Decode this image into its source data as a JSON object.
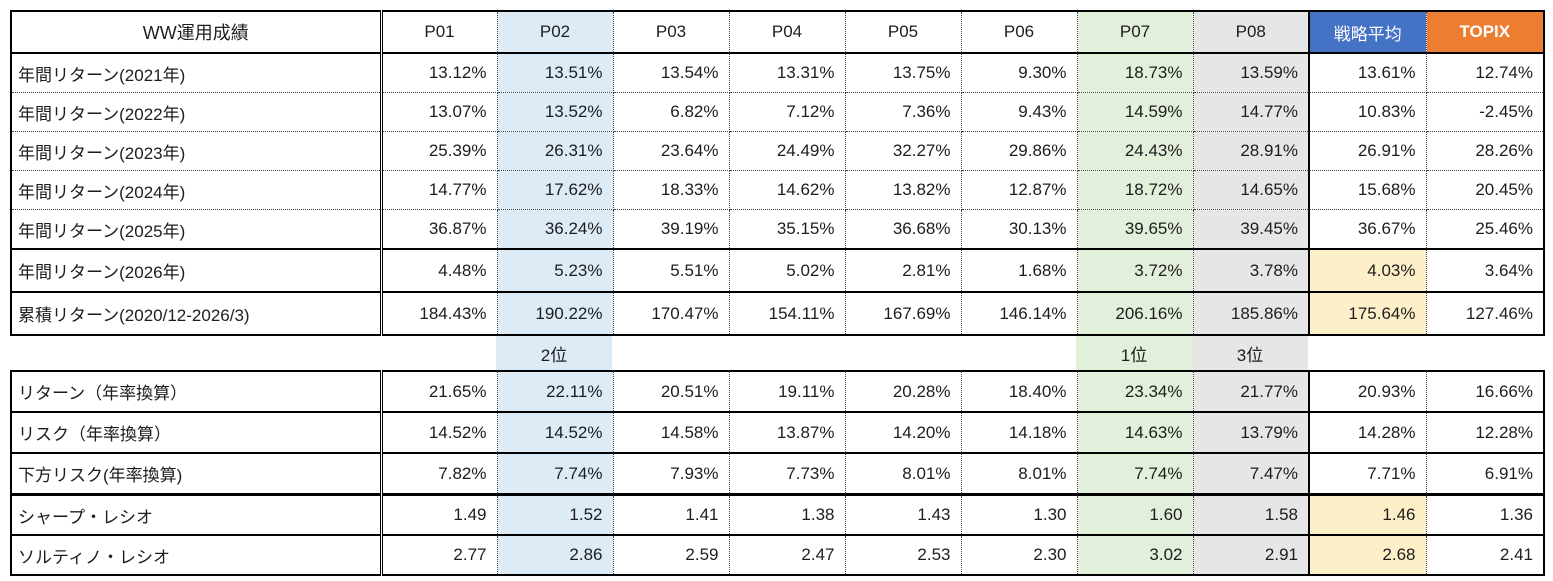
{
  "chart_data": {
    "type": "table",
    "title": "WW運用成績",
    "columns": [
      "WW運用成績",
      "P01",
      "P02",
      "P03",
      "P04",
      "P05",
      "P06",
      "P07",
      "P08",
      "戦略平均",
      "TOPIX"
    ],
    "rows": [
      [
        "年間リターン(2021年)",
        "13.12%",
        "13.51%",
        "13.54%",
        "13.31%",
        "13.75%",
        "9.30%",
        "18.73%",
        "13.59%",
        "13.61%",
        "12.74%"
      ],
      [
        "年間リターン(2022年)",
        "13.07%",
        "13.52%",
        "6.82%",
        "7.12%",
        "7.36%",
        "9.43%",
        "14.59%",
        "14.77%",
        "10.83%",
        "-2.45%"
      ],
      [
        "年間リターン(2023年)",
        "25.39%",
        "26.31%",
        "23.64%",
        "24.49%",
        "32.27%",
        "29.86%",
        "24.43%",
        "28.91%",
        "26.91%",
        "28.26%"
      ],
      [
        "年間リターン(2024年)",
        "14.77%",
        "17.62%",
        "18.33%",
        "14.62%",
        "13.82%",
        "12.87%",
        "18.72%",
        "14.65%",
        "15.68%",
        "20.45%"
      ],
      [
        "年間リターン(2025年)",
        "36.87%",
        "36.24%",
        "39.19%",
        "35.15%",
        "36.68%",
        "30.13%",
        "39.65%",
        "39.45%",
        "36.67%",
        "25.46%"
      ],
      [
        "年間リターン(2026年)",
        "4.48%",
        "5.23%",
        "5.51%",
        "5.02%",
        "2.81%",
        "1.68%",
        "3.72%",
        "3.78%",
        "4.03%",
        "3.64%"
      ],
      [
        "累積リターン(2020/12-2026/3)",
        "184.43%",
        "190.22%",
        "170.47%",
        "154.11%",
        "167.69%",
        "146.14%",
        "206.16%",
        "185.86%",
        "175.64%",
        "127.46%"
      ],
      [
        "リターン（年率換算）",
        "21.65%",
        "22.11%",
        "20.51%",
        "19.11%",
        "20.28%",
        "18.40%",
        "23.34%",
        "21.77%",
        "20.93%",
        "16.66%"
      ],
      [
        "リスク（年率換算）",
        "14.52%",
        "14.52%",
        "14.58%",
        "13.87%",
        "14.20%",
        "14.18%",
        "14.63%",
        "13.79%",
        "14.28%",
        "12.28%"
      ],
      [
        "下方リスク(年率換算)",
        "7.82%",
        "7.74%",
        "7.93%",
        "7.73%",
        "8.01%",
        "8.01%",
        "7.74%",
        "7.47%",
        "7.71%",
        "6.91%"
      ],
      [
        "シャープ・レシオ",
        "1.49",
        "1.52",
        "1.41",
        "1.38",
        "1.43",
        "1.30",
        "1.60",
        "1.58",
        "1.46",
        "1.36"
      ],
      [
        "ソルティノ・レシオ",
        "2.77",
        "2.86",
        "2.59",
        "2.47",
        "2.53",
        "2.30",
        "3.02",
        "2.91",
        "2.68",
        "2.41"
      ]
    ],
    "rank_row": {
      "p02": "2位",
      "p07": "1位",
      "p08": "3位"
    },
    "column_highlights": {
      "P02": "#DDEBF7",
      "P07": "#E2EFDA",
      "P08": "#E7E6E6"
    },
    "avg_highlight_rows": [
      "年間リターン(2026年)",
      "累積リターン(2020/12-2026/3)",
      "シャープ・レシオ",
      "ソルティノ・レシオ"
    ],
    "layout": {
      "grid": "dotted-inner, solid-outer",
      "legend_position": "none"
    }
  },
  "colors": {
    "highlight_blue": "#DDEBF7",
    "highlight_green": "#E2EFDA",
    "highlight_gray": "#E7E6E6",
    "highlight_yellow": "#FDF0C8",
    "header_strategy_avg_bg": "#4472C4",
    "header_topix_bg": "#ED7D31"
  }
}
